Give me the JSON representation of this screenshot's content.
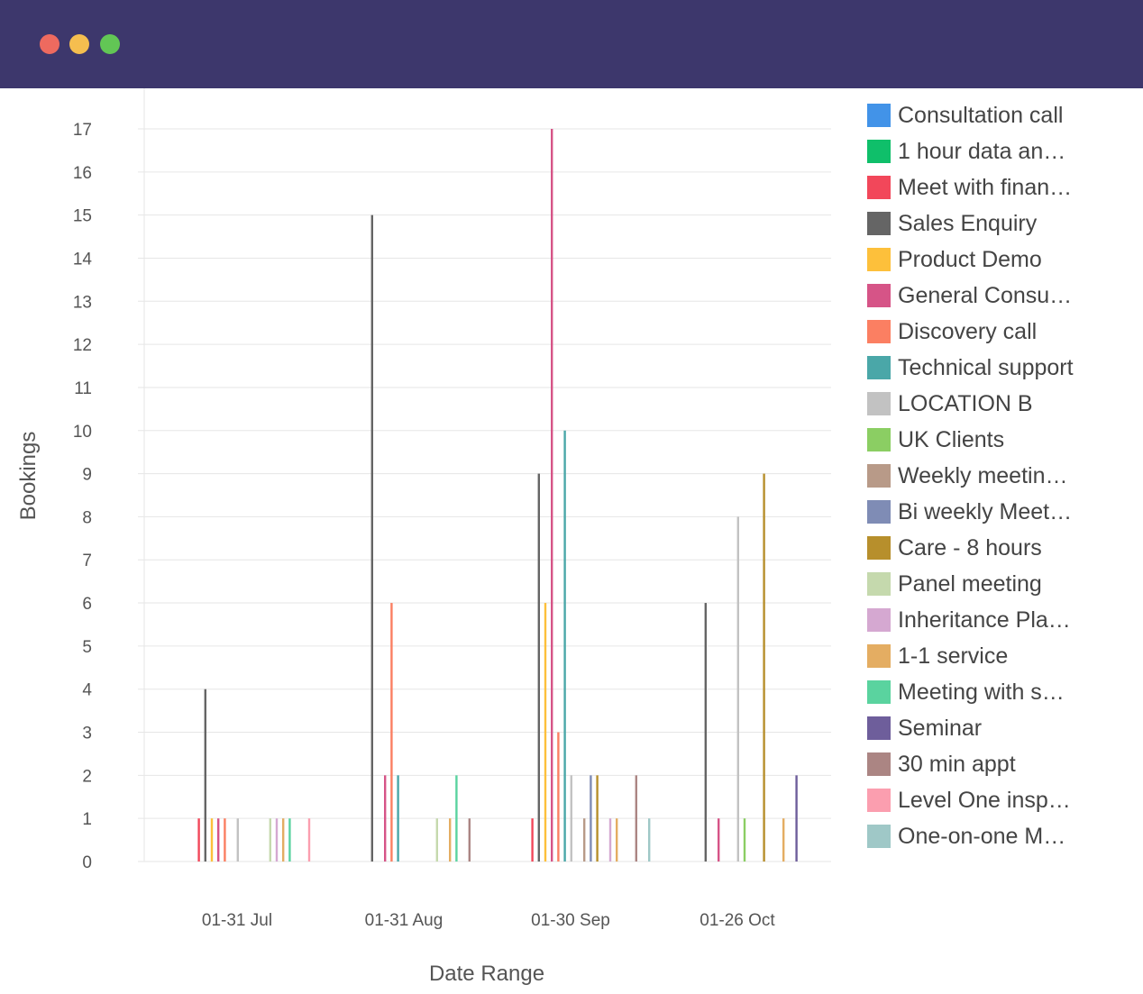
{
  "window": {
    "controls": [
      "close",
      "minimize",
      "maximize"
    ],
    "colors": {
      "titlebar": "#3d376c",
      "close": "#ee6a5f",
      "minimize": "#f5be4f",
      "maximize": "#62c655"
    }
  },
  "chart_data": {
    "type": "bar",
    "title": "",
    "xlabel": "Date Range",
    "ylabel": "Bookings",
    "ylim": [
      0,
      17
    ],
    "yticks": [
      0,
      1,
      2,
      3,
      4,
      5,
      6,
      7,
      8,
      9,
      10,
      11,
      12,
      13,
      14,
      15,
      16,
      17
    ],
    "grid": true,
    "legend_position": "right",
    "categories": [
      "01-31 Jul",
      "01-31 Aug",
      "01-30 Sep",
      "01-26 Oct"
    ],
    "series": [
      {
        "name": "Consultation call",
        "color": "#4293e8",
        "values": [
          0,
          0,
          0,
          0
        ]
      },
      {
        "name": "1 hour data an…",
        "color": "#0fbf6a",
        "values": [
          0,
          0,
          0,
          0
        ]
      },
      {
        "name": "Meet with finan…",
        "color": "#f2475a",
        "values": [
          1,
          0,
          1,
          0
        ]
      },
      {
        "name": "Sales Enquiry",
        "color": "#656565",
        "values": [
          4,
          15,
          9,
          6
        ]
      },
      {
        "name": "Product Demo",
        "color": "#fdc03b",
        "values": [
          1,
          0,
          6,
          0
        ]
      },
      {
        "name": "General Consu…",
        "color": "#d65487",
        "values": [
          1,
          2,
          17,
          1
        ]
      },
      {
        "name": "Discovery call",
        "color": "#fb7f62",
        "values": [
          1,
          6,
          3,
          0
        ]
      },
      {
        "name": "Technical support",
        "color": "#4aa7a8",
        "values": [
          0,
          2,
          10,
          0
        ]
      },
      {
        "name": "LOCATION B",
        "color": "#c2c2c2",
        "values": [
          1,
          0,
          2,
          8
        ]
      },
      {
        "name": "UK Clients",
        "color": "#8bce63",
        "values": [
          0,
          0,
          0,
          1
        ]
      },
      {
        "name": "Weekly meetin…",
        "color": "#b89a88",
        "values": [
          0,
          0,
          1,
          0
        ]
      },
      {
        "name": "Bi weekly Meet…",
        "color": "#7f8cb5",
        "values": [
          0,
          0,
          2,
          0
        ]
      },
      {
        "name": "Care - 8 hours",
        "color": "#b78f2c",
        "values": [
          0,
          0,
          2,
          9
        ]
      },
      {
        "name": "Panel meeting",
        "color": "#c5d9ad",
        "values": [
          1,
          1,
          0,
          0
        ]
      },
      {
        "name": "Inheritance Pla…",
        "color": "#d5a8d1",
        "values": [
          1,
          0,
          1,
          0
        ]
      },
      {
        "name": "1-1 service",
        "color": "#e4ad62",
        "values": [
          1,
          1,
          1,
          1
        ]
      },
      {
        "name": "Meeting with s…",
        "color": "#5ad39f",
        "values": [
          1,
          2,
          0,
          0
        ]
      },
      {
        "name": "Seminar",
        "color": "#6e5e9b",
        "values": [
          0,
          0,
          0,
          2
        ]
      },
      {
        "name": "30 min appt",
        "color": "#ab8583",
        "values": [
          0,
          1,
          2,
          0
        ]
      },
      {
        "name": "Level One insp…",
        "color": "#fb9eaf",
        "values": [
          1,
          0,
          0,
          0
        ]
      },
      {
        "name": "One-on-one M…",
        "color": "#9fc8c7",
        "values": [
          0,
          0,
          1,
          0
        ]
      }
    ]
  }
}
